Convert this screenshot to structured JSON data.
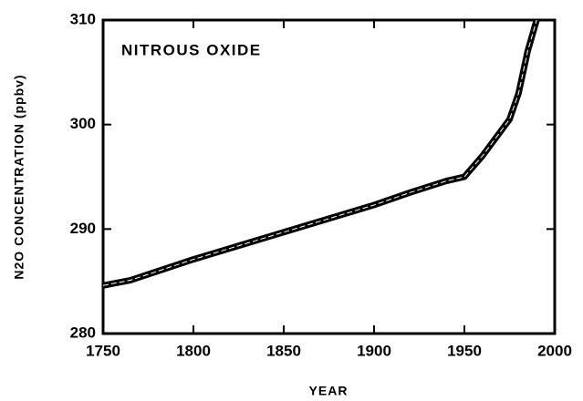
{
  "chart_data": {
    "type": "line",
    "title": "NITROUS OXIDE",
    "x_label": "YEAR",
    "y_label": "N2O CONCENTRATION (ppbv)",
    "series": [
      {
        "name": "N2O",
        "color": "#000000",
        "x": [
          1750,
          1765,
          1800,
          1850,
          1900,
          1920,
          1940,
          1950,
          1960,
          1975,
          1980,
          1985,
          1990
        ],
        "values": [
          284.6,
          285.1,
          287.1,
          289.7,
          292.3,
          293.5,
          294.6,
          295.0,
          297.0,
          300.5,
          303.0,
          307.0,
          310.0
        ]
      }
    ],
    "xlim": [
      1750,
      2000
    ],
    "xticks": [
      1750,
      1800,
      1850,
      1900,
      1950,
      2000
    ],
    "ylim": [
      280,
      310
    ],
    "yticks": [
      280,
      290,
      300,
      310
    ],
    "grid": false
  }
}
